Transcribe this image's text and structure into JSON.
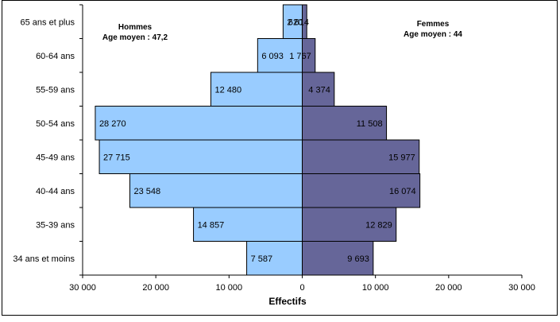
{
  "chart_data": {
    "type": "bar",
    "orientation": "horizontal",
    "subtype": "population-pyramid",
    "categories": [
      "34 ans et moins",
      "35-39 ans",
      "40-44 ans",
      "45-49 ans",
      "50-54 ans",
      "55-59 ans",
      "60-64 ans",
      "65 ans et plus"
    ],
    "series": [
      {
        "name": "Hommes",
        "color": "#99ccff",
        "values": [
          7587,
          14857,
          23548,
          27715,
          28270,
          12480,
          6093,
          2614
        ]
      },
      {
        "name": "Femmes",
        "color": "#666699",
        "values": [
          9693,
          12829,
          16074,
          15977,
          11508,
          4374,
          1767,
          620
        ]
      }
    ],
    "data_labels": {
      "Hommes": [
        "7 587",
        "14 857",
        "23 548",
        "27 715",
        "28 270",
        "12 480",
        "6 093",
        "2 614"
      ],
      "Femmes": [
        "9 693",
        "12 829",
        "16 074",
        "15 977",
        "11 508",
        "4 374",
        "1 767",
        "620"
      ]
    },
    "group_labels": {
      "men_title": "Hommes",
      "men_subtitle": "Age moyen : 47,2",
      "women_title": "Femmes",
      "women_subtitle": "Age moyen : 44"
    },
    "xlabel": "Effectifs",
    "ylabel": "",
    "xlim": [
      -30000,
      30000
    ],
    "xticks": [
      -30000,
      -20000,
      -10000,
      0,
      10000,
      20000,
      30000
    ],
    "xtick_labels": [
      "30 000",
      "20 000",
      "10 000",
      "0",
      "10 000",
      "20 000",
      "30 000"
    ],
    "grid": false,
    "legend": "none"
  }
}
